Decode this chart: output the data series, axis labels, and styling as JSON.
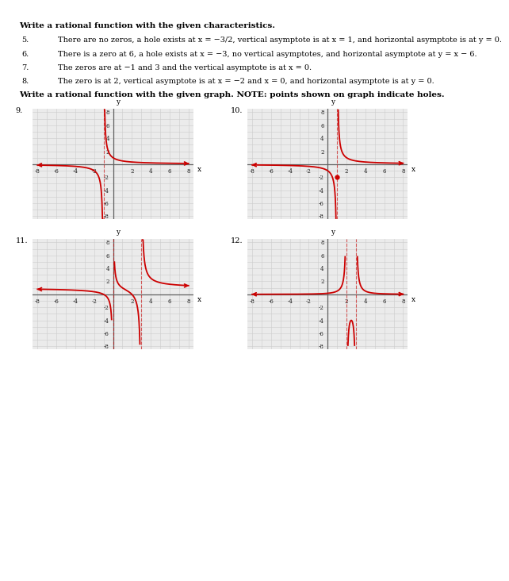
{
  "title1": "Write a rational function with the given characteristics.",
  "title2": "Write a rational function with the given graph. NOTE: points shown on graph indicate holes.",
  "p5": "There are no zeros, a hole exists at x = −3/2, vertical asymptote is at x = 1, and horizontal asymptote is at y = 0.",
  "p6": "There is a zero at 6, a hole exists at x = −3, no vertical asymptotes, and horizontal asymptote at y = x − 6.",
  "p7": "The zeros are at −1 and 3 and the vertical asymptote is at x = 0.",
  "p8": "The zero is at 2, vertical asymptote is at x = −2 and x = 0, and horizontal asymptote is at y = 0.",
  "curve_color": "#cc0000",
  "axis_color": "#606060",
  "grid_color": "#cccccc",
  "plot_bg": "#ebebeb",
  "font_size_title": 7.5,
  "font_size_text": 7.0,
  "font_size_tick": 5.0,
  "font_size_axlabel": 6.5,
  "num_indent": 0.04,
  "text_indent": 0.13
}
